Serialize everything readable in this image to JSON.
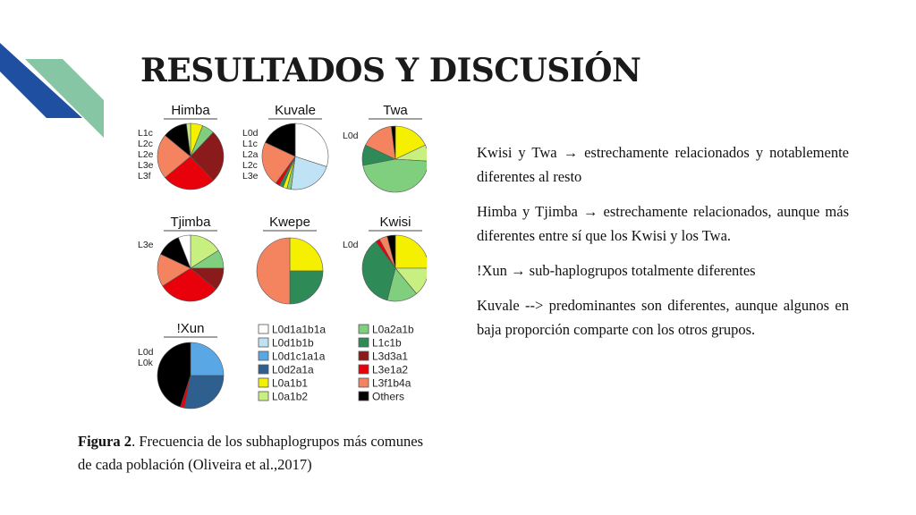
{
  "slide": {
    "title": "RESULTADOS Y DISCUSIÓN",
    "caption_label": "Figura 2",
    "caption_text": ". Frecuencia de los subhaplogrupos más comunes de cada población (Oliveira et al.,2017)",
    "bullets": [
      "Kwisi y Twa → estrechamente relacionados y notablemente diferentes al resto",
      "Himba y Tjimba → estrechamente relacionados, aunque más diferentes entre sí que los Kwisi y los Twa.",
      "!Xun → sub-haplogrupos totalmente diferentes",
      "Kuvale --> predominantes son diferentes, aunque algunos en baja proporción comparte con los otros grupos."
    ],
    "colors": {
      "deco_blue": "#1e4fa0",
      "deco_green": "#86c6a4"
    }
  },
  "chart_data": {
    "type": "pie",
    "categories": [
      "L0d1a1b1a",
      "L0d1b1b",
      "L0d1c1a1a",
      "L0d2a1a",
      "L0a1b1",
      "L0a1b2",
      "L0a2a1b",
      "L1c1b",
      "L3d3a1",
      "L3e1a2",
      "L3f1b4a",
      "Others"
    ],
    "colors": [
      "#ffffff",
      "#bfe2f5",
      "#5aa7e6",
      "#2f5f8f",
      "#f5f000",
      "#c8f080",
      "#7fcf7f",
      "#2e8b57",
      "#8b1a1a",
      "#e8000a",
      "#f4845f",
      "#000000"
    ],
    "series": [
      {
        "name": "Himba",
        "codes": [
          "L1c",
          "L2c",
          "L2e",
          "L3e",
          "L3f"
        ],
        "values": {
          "L0a1b1": 6,
          "L0a2a1b": 6,
          "L3d3a1": 26,
          "L3e1a2": 26,
          "L3f1b4a": 22,
          "Others": 12,
          "L0a1b2": 2
        }
      },
      {
        "name": "Kuvale",
        "codes": [
          "L0d",
          "L1c",
          "L2a",
          "L2c",
          "L3e"
        ],
        "values": {
          "L0d1a1b1a": 30,
          "L0d1b1b": 22,
          "L0a2a1b": 2,
          "L0a1b1": 2,
          "L1c1b": 2,
          "L3e1a2": 2,
          "L3f1b4a": 22,
          "Others": 18
        }
      },
      {
        "name": "Twa",
        "codes": [
          "L0d"
        ],
        "values": {
          "L0a1b1": 18,
          "L0a1b2": 8,
          "L0a2a1b": 46,
          "L1c1b": 10,
          "L3f1b4a": 16,
          "Others": 2
        }
      },
      {
        "name": "Tjimba",
        "codes": [
          "L3e"
        ],
        "values": {
          "L0a1b2": 16,
          "L0a2a1b": 9,
          "L3d3a1": 11,
          "L3e1a2": 30,
          "L3f1b4a": 16,
          "Others": 12,
          "L0d1a1b1a": 6
        }
      },
      {
        "name": "Kwepe",
        "codes": [],
        "values": {
          "L0a1b1": 25,
          "L1c1b": 25,
          "L3f1b4a": 50
        }
      },
      {
        "name": "Kwisi",
        "codes": [
          "L0d"
        ],
        "values": {
          "L0a1b1": 25,
          "L0a1b2": 14,
          "L0a2a1b": 15,
          "L1c1b": 36,
          "L3e1a2": 2,
          "L3f1b4a": 4,
          "Others": 4
        }
      },
      {
        "name": "!Xun",
        "codes": [
          "L0d",
          "L0k"
        ],
        "values": {
          "L0d1c1a1a": 25,
          "L0d2a1a": 28,
          "L3e1a2": 2,
          "Others": 45
        }
      }
    ]
  }
}
